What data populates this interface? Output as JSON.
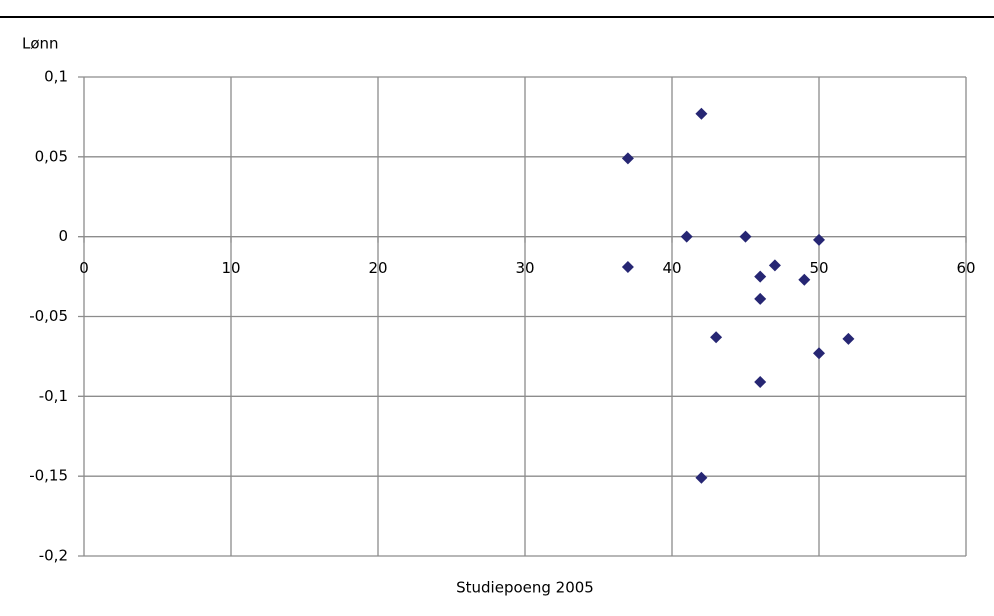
{
  "chart_data": {
    "type": "scatter",
    "y_label": "Lønn",
    "x_label": "Studiepoeng 2005",
    "color": "#262673",
    "grid": true,
    "xlim": [
      0,
      60
    ],
    "xticks": [
      0,
      10,
      20,
      30,
      40,
      50,
      60
    ],
    "ylim": [
      -0.2,
      0.1
    ],
    "yticks": [
      {
        "value": 0.1,
        "label": "0,1"
      },
      {
        "value": 0.05,
        "label": "0,05"
      },
      {
        "value": 0,
        "label": "0"
      },
      {
        "value": -0.05,
        "label": "-0,05"
      },
      {
        "value": -0.1,
        "label": "-0,1"
      },
      {
        "value": -0.15,
        "label": "-0,15"
      },
      {
        "value": -0.2,
        "label": "-0,2"
      }
    ],
    "x": [
      37,
      42,
      37,
      41,
      45,
      50,
      46,
      47,
      49,
      46,
      43,
      52,
      50,
      46,
      42
    ],
    "values": [
      0.049,
      0.077,
      -0.019,
      0,
      0,
      -0.002,
      -0.025,
      -0.018,
      -0.027,
      -0.039,
      -0.063,
      -0.064,
      -0.073,
      -0.091,
      -0.151
    ]
  }
}
